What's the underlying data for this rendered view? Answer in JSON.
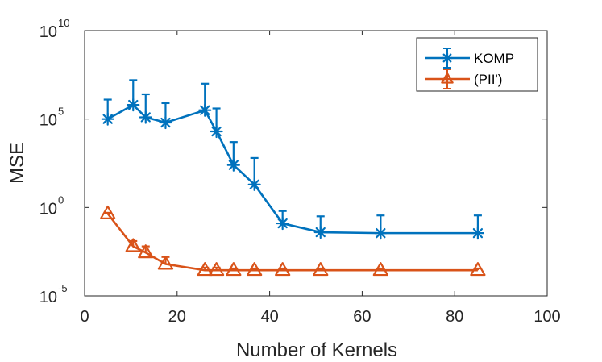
{
  "chart_data": {
    "type": "line",
    "title": "",
    "xlabel": "Number of Kernels",
    "ylabel": "MSE",
    "xlim": [
      0,
      100
    ],
    "ylim_log10": [
      -5,
      10
    ],
    "yscale": "log",
    "grid": false,
    "legend_position": "top-right",
    "x_ticks": [
      {
        "value": 0,
        "label": "0"
      },
      {
        "value": 20,
        "label": "20"
      },
      {
        "value": 40,
        "label": "40"
      },
      {
        "value": 60,
        "label": "60"
      },
      {
        "value": 80,
        "label": "80"
      },
      {
        "value": 100,
        "label": "100"
      }
    ],
    "y_ticks": [
      {
        "exp": 10,
        "base": "10",
        "power": "10"
      },
      {
        "exp": 5,
        "base": "10",
        "power": "5"
      },
      {
        "exp": 0,
        "base": "10",
        "power": "0"
      },
      {
        "exp": -5,
        "base": "10",
        "power": "-5"
      }
    ],
    "series": [
      {
        "name": "KOMP",
        "color": "#0072BD",
        "marker": "asterisk",
        "points": [
          {
            "x": 5,
            "log10_y": 5.0,
            "log10_upper": 6.1
          },
          {
            "x": 10.5,
            "log10_y": 5.8,
            "log10_upper": 7.2
          },
          {
            "x": 13.2,
            "log10_y": 5.1,
            "log10_upper": 6.4
          },
          {
            "x": 17.5,
            "log10_y": 4.8,
            "log10_upper": 5.9
          },
          {
            "x": 26,
            "log10_y": 5.5,
            "log10_upper": 7.0
          },
          {
            "x": 28.5,
            "log10_y": 4.3,
            "log10_upper": 5.6
          },
          {
            "x": 32.2,
            "log10_y": 2.4,
            "log10_upper": 3.7
          },
          {
            "x": 36.7,
            "log10_y": 1.3,
            "log10_upper": 2.8
          },
          {
            "x": 42.8,
            "log10_y": -0.9,
            "log10_upper": -0.2
          },
          {
            "x": 51,
            "log10_y": -1.4,
            "log10_upper": -0.5
          },
          {
            "x": 64,
            "log10_y": -1.45,
            "log10_upper": -0.45
          },
          {
            "x": 85,
            "log10_y": -1.45,
            "log10_upper": -0.45
          }
        ]
      },
      {
        "name": "(PII')",
        "color": "#D95319",
        "marker": "triangle",
        "points": [
          {
            "x": 5,
            "log10_y": -0.35,
            "log10_upper": -0.3
          },
          {
            "x": 10.5,
            "log10_y": -2.2,
            "log10_upper": -1.9
          },
          {
            "x": 13.2,
            "log10_y": -2.55,
            "log10_upper": -2.2
          },
          {
            "x": 17.5,
            "log10_y": -3.2,
            "log10_upper": -2.8
          },
          {
            "x": 26,
            "log10_y": -3.55,
            "log10_upper": -3.4
          },
          {
            "x": 28.5,
            "log10_y": -3.55,
            "log10_upper": -3.4
          },
          {
            "x": 32.2,
            "log10_y": -3.55,
            "log10_upper": -3.45
          },
          {
            "x": 36.7,
            "log10_y": -3.55,
            "log10_upper": -3.45
          },
          {
            "x": 42.8,
            "log10_y": -3.55,
            "log10_upper": -3.45
          },
          {
            "x": 51,
            "log10_y": -3.55,
            "log10_upper": -3.45
          },
          {
            "x": 64,
            "log10_y": -3.55,
            "log10_upper": -3.45
          },
          {
            "x": 85,
            "log10_y": -3.55,
            "log10_upper": -3.45
          }
        ]
      }
    ]
  }
}
